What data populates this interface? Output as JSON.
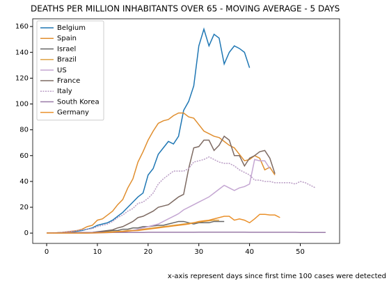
{
  "chart_data": {
    "type": "line",
    "title": "DEATHS PER MILLION INHABITANTS  OVER 65 - MOVING AVERAGE - 5 DAYS",
    "annotation": "x-axis represent days since first time 100 cases were detected",
    "x": [
      0,
      1,
      2,
      3,
      4,
      5,
      6,
      7,
      8,
      9,
      10,
      11,
      12,
      13,
      14,
      15,
      16,
      17,
      18,
      19,
      20,
      21,
      22,
      23,
      24,
      25,
      26,
      27,
      28,
      29,
      30,
      31,
      32,
      33,
      34,
      35,
      36,
      37,
      38,
      39,
      40,
      41,
      42,
      43,
      44,
      45,
      46,
      47,
      48,
      49,
      50,
      51,
      52,
      53,
      54,
      55
    ],
    "xlim": [
      -2.75,
      57.75
    ],
    "xticks": [
      0,
      10,
      20,
      30,
      40,
      50
    ],
    "ylim": [
      -8,
      166
    ],
    "yticks": [
      0,
      20,
      40,
      60,
      80,
      100,
      120,
      140,
      160
    ],
    "legend": "upper left",
    "series": [
      {
        "name": "Belgium",
        "color": "#1f77b4",
        "values": [
          0,
          0,
          0.2,
          0.5,
          0.8,
          1,
          1.5,
          2,
          3,
          4,
          6,
          7,
          8,
          10,
          13,
          16,
          20,
          24,
          28,
          31,
          45,
          50,
          61,
          66,
          71,
          69,
          75,
          95,
          102,
          114,
          145,
          158,
          145,
          154,
          151,
          131,
          140,
          145,
          143,
          140,
          128,
          null,
          null,
          null,
          null,
          null,
          null,
          null,
          null,
          null,
          null,
          null,
          null,
          null,
          null,
          null
        ]
      },
      {
        "name": "Spain",
        "color": "#e08e2e",
        "values": [
          0,
          0,
          0.3,
          0.5,
          1,
          1.5,
          2,
          3,
          5,
          6,
          10,
          11,
          14,
          17,
          22,
          26,
          35,
          42,
          55,
          63,
          72,
          79,
          85,
          87,
          88,
          91,
          93,
          93,
          90,
          89,
          84,
          79,
          77,
          75,
          74,
          71,
          68,
          66,
          61,
          56,
          57,
          60,
          58,
          49,
          51,
          45,
          null,
          null,
          null,
          null,
          null,
          null,
          null,
          null,
          null,
          null
        ]
      },
      {
        "name": "Israel",
        "color": "#666666",
        "values": [
          0,
          0,
          0,
          0,
          0,
          0,
          0,
          0.2,
          0.3,
          0.5,
          0.8,
          1,
          1.5,
          2,
          2,
          3,
          3,
          4,
          4,
          5,
          5,
          5.5,
          6,
          6,
          7,
          8,
          9,
          9,
          8,
          7,
          8,
          8,
          8,
          9,
          9,
          9,
          null,
          null,
          null,
          null,
          null,
          null,
          null,
          null,
          null,
          null,
          null,
          null,
          null,
          null,
          null,
          null,
          null,
          null,
          null,
          null
        ]
      },
      {
        "name": "Brazil",
        "color": "#dea040",
        "values": [
          0,
          0,
          0,
          0,
          0,
          0,
          0,
          0,
          0,
          0.2,
          0.3,
          0.5,
          0.8,
          1,
          1.2,
          1.5,
          2,
          2.2,
          2.5,
          3,
          3.5,
          4,
          4.5,
          5,
          5.5,
          6,
          6.5,
          7,
          7.5,
          8,
          8.5,
          9,
          9.5,
          10,
          10,
          null,
          null,
          null,
          null,
          null,
          null,
          null,
          null,
          null,
          null,
          null,
          null,
          null,
          null,
          null,
          null,
          null,
          null,
          null,
          null,
          null
        ]
      },
      {
        "name": "US",
        "color": "#c4a6d2",
        "values": [
          0,
          0,
          0,
          0,
          0,
          0,
          0,
          0,
          0,
          0,
          0.1,
          0.2,
          0.3,
          0.5,
          0.8,
          1,
          1.5,
          2,
          3,
          4,
          5,
          6,
          7,
          9,
          11,
          13,
          15,
          18,
          20,
          22,
          24,
          26,
          28,
          31,
          34,
          37,
          35,
          33,
          35,
          36,
          38,
          57,
          56,
          56,
          50,
          null,
          null,
          null,
          null,
          null,
          null,
          null,
          null,
          null,
          null,
          null
        ]
      },
      {
        "name": "France",
        "color": "#7d6a62",
        "values": [
          0,
          0,
          0,
          0,
          0,
          0,
          0,
          0,
          0,
          0.5,
          1,
          1.5,
          2,
          2.5,
          4,
          5,
          7,
          9,
          12,
          13,
          15,
          17,
          20,
          21,
          22,
          25,
          28,
          30,
          50,
          66,
          67,
          72,
          72,
          64,
          68,
          75,
          72,
          60,
          60,
          52,
          58,
          60,
          63,
          64,
          58,
          46,
          null,
          null,
          null,
          null,
          null,
          null,
          null,
          null,
          null,
          null
        ]
      },
      {
        "name": "Italy",
        "color": "#b99cc4",
        "linestyle": "dotted",
        "values": [
          0,
          0,
          0.2,
          0.5,
          1,
          1.5,
          2,
          2.5,
          3,
          3.5,
          5,
          6,
          7,
          9,
          12,
          14,
          17,
          19,
          23,
          24,
          27,
          31,
          38,
          42,
          45,
          48,
          48,
          48,
          50,
          55,
          56,
          57,
          59,
          57,
          55,
          54,
          54,
          52,
          49,
          47,
          45,
          41,
          41,
          40,
          40,
          39,
          39,
          39,
          39,
          38,
          40,
          39,
          37,
          35,
          null,
          null
        ]
      },
      {
        "name": "South Korea",
        "color": "#9a7aa8",
        "values": [
          0,
          0.1,
          0.2,
          0.3,
          0.4,
          0.5,
          0.5,
          0.5,
          0.5,
          0.5,
          0.5,
          0.5,
          0.5,
          0.5,
          0.5,
          0.5,
          0.5,
          0.5,
          0.5,
          0.5,
          0.6,
          0.6,
          0.6,
          0.6,
          0.6,
          0.6,
          0.6,
          0.6,
          0.6,
          0.6,
          0.7,
          0.7,
          0.7,
          0.7,
          0.7,
          0.7,
          0.7,
          0.7,
          0.7,
          0.7,
          0.6,
          0.6,
          0.6,
          0.6,
          0.6,
          0.6,
          0.6,
          0.6,
          0.6,
          0.6,
          0.5,
          0.5,
          0.5,
          0.5,
          0.5,
          0.5
        ]
      },
      {
        "name": "Germany",
        "color": "#ea902a",
        "values": [
          0,
          0,
          0,
          0,
          0,
          0,
          0,
          0,
          0,
          0.1,
          0.2,
          0.3,
          0.5,
          0.7,
          1,
          1.2,
          1.5,
          1.8,
          2,
          2.5,
          3,
          3.5,
          4,
          4.5,
          5,
          5.5,
          6,
          6.5,
          7,
          8,
          9,
          9.5,
          10,
          11,
          12,
          13,
          13,
          10,
          11,
          10,
          8,
          11,
          14.5,
          14.5,
          14,
          14,
          12,
          null,
          null,
          null,
          null,
          null,
          null,
          null,
          null,
          null
        ]
      }
    ]
  }
}
